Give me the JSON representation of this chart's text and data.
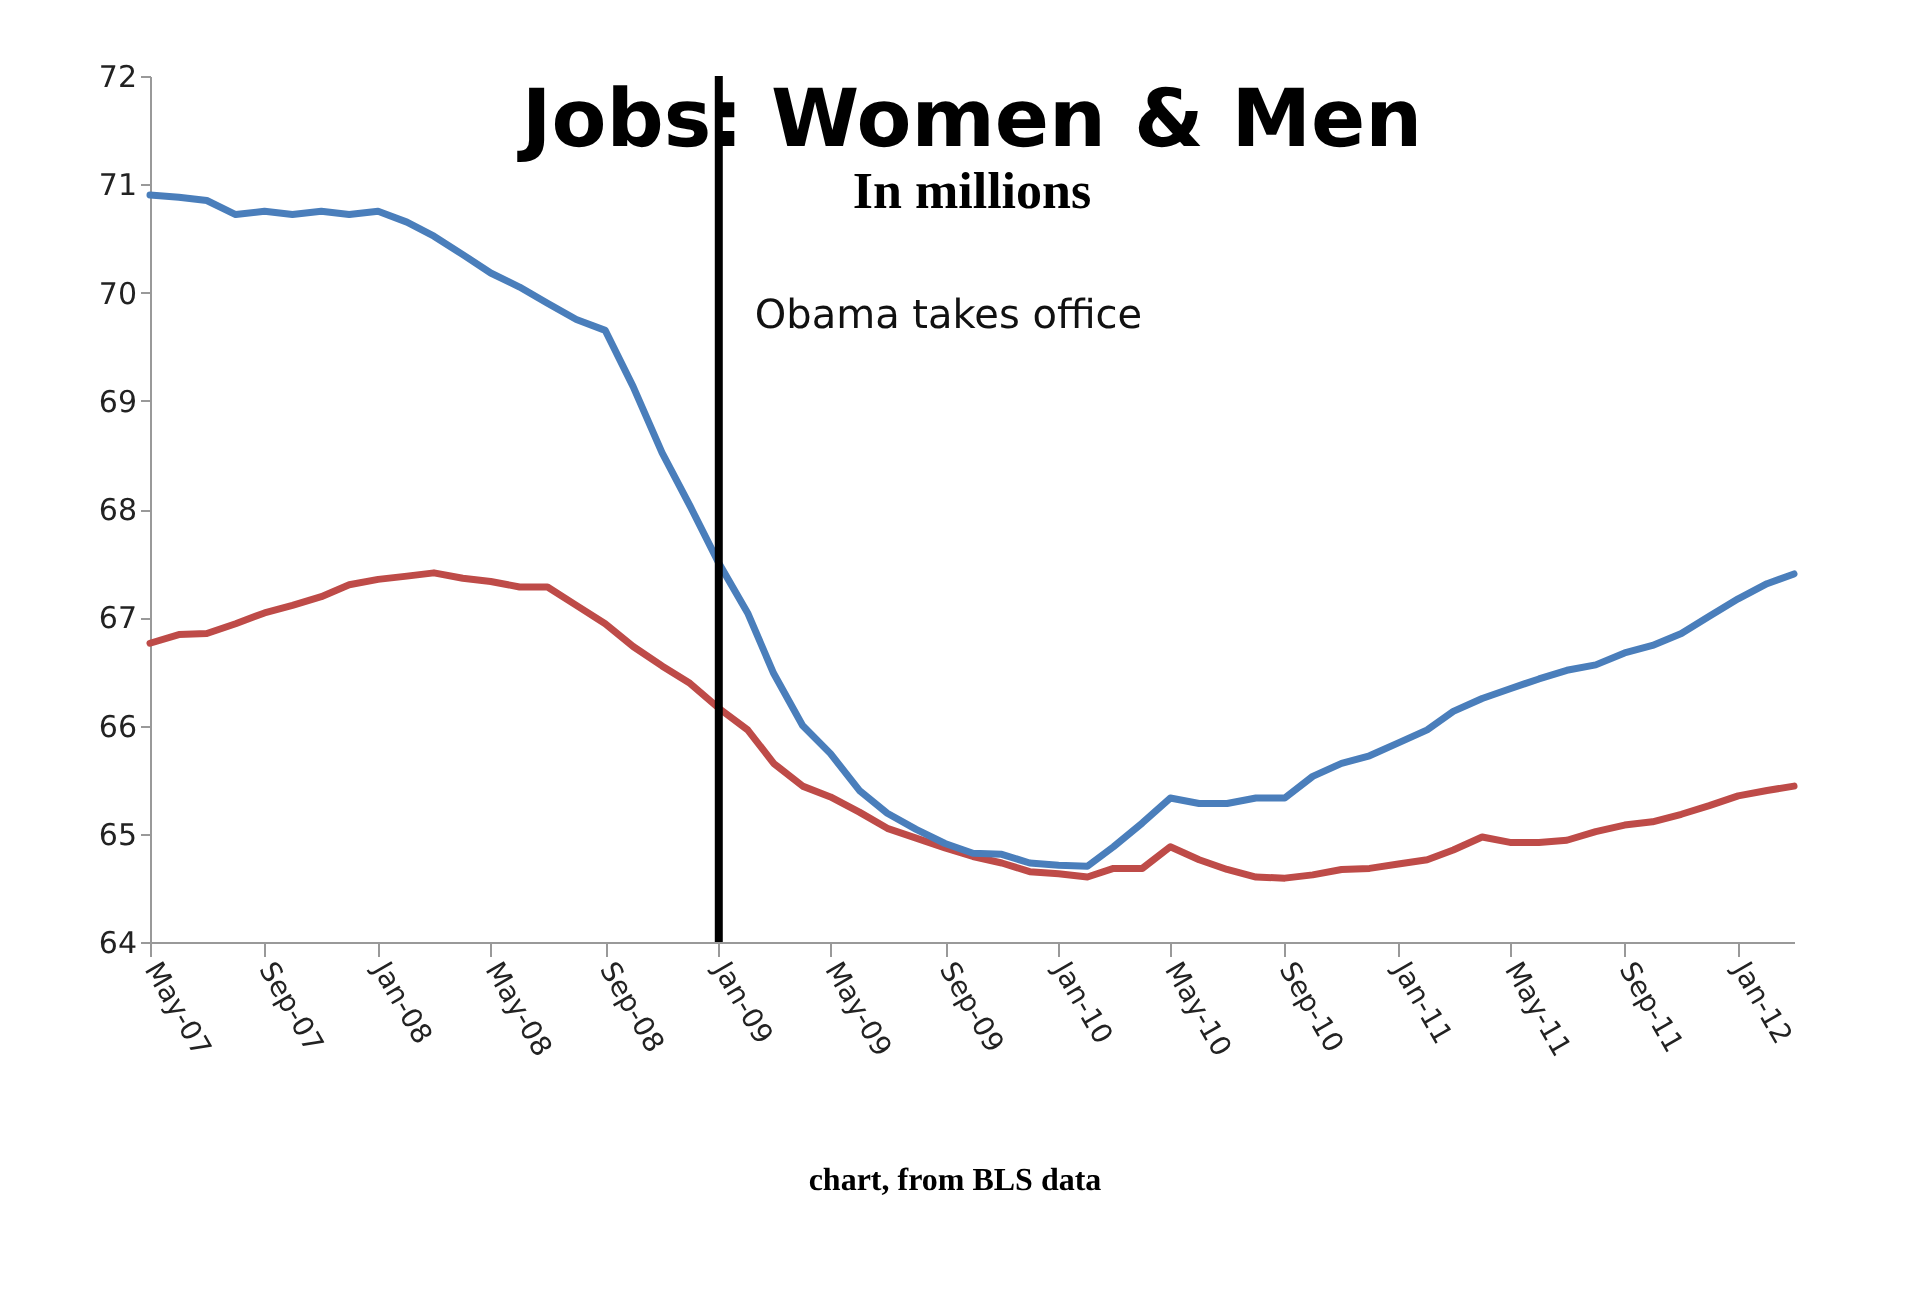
{
  "chart_data": {
    "type": "line",
    "title": "Jobs: Women & Men",
    "subtitle": "In millions",
    "x": [
      "2007-05",
      "2007-06",
      "2007-07",
      "2007-08",
      "2007-09",
      "2007-10",
      "2007-11",
      "2007-12",
      "2008-01",
      "2008-02",
      "2008-03",
      "2008-04",
      "2008-05",
      "2008-06",
      "2008-07",
      "2008-08",
      "2008-09",
      "2008-10",
      "2008-11",
      "2008-12",
      "2009-01",
      "2009-02",
      "2009-03",
      "2009-04",
      "2009-05",
      "2009-06",
      "2009-07",
      "2009-08",
      "2009-09",
      "2009-10",
      "2009-11",
      "2009-12",
      "2010-01",
      "2010-02",
      "2010-03",
      "2010-04",
      "2010-05",
      "2010-06",
      "2010-07",
      "2010-08",
      "2010-09",
      "2010-10",
      "2010-11",
      "2010-12",
      "2011-01",
      "2011-02",
      "2011-03",
      "2011-04",
      "2011-05",
      "2011-06",
      "2011-07",
      "2011-08",
      "2011-09",
      "2011-10",
      "2011-11",
      "2011-12",
      "2012-01",
      "2012-02",
      "2012-03"
    ],
    "series": [
      {
        "color": "#be4b48",
        "values": [
          66.76,
          66.84,
          66.85,
          66.94,
          67.04,
          67.11,
          67.19,
          67.3,
          67.35,
          67.38,
          67.41,
          67.36,
          67.33,
          67.28,
          67.28,
          67.11,
          66.94,
          66.73,
          66.55,
          66.39,
          66.16,
          65.96,
          65.65,
          65.44,
          65.34,
          65.2,
          65.05,
          64.96,
          64.87,
          64.79,
          64.73,
          64.65,
          64.63,
          64.6,
          64.68,
          64.68,
          64.88,
          64.76,
          64.67,
          64.6,
          64.59,
          64.62,
          64.67,
          64.68,
          64.72,
          64.76,
          64.85,
          64.97,
          64.92,
          64.92,
          64.94,
          65.02,
          65.08,
          65.11,
          65.18,
          65.26,
          65.35,
          65.4,
          65.44
        ]
      },
      {
        "color": "#4a7ebb",
        "values": [
          70.9,
          70.88,
          70.85,
          70.72,
          70.75,
          70.72,
          70.75,
          70.72,
          70.75,
          70.65,
          70.52,
          70.35,
          70.18,
          70.05,
          69.9,
          69.75,
          69.65,
          69.13,
          68.52,
          68.03,
          67.5,
          67.04,
          66.48,
          66.0,
          65.74,
          65.4,
          65.19,
          65.04,
          64.91,
          64.82,
          64.81,
          64.73,
          64.71,
          64.7,
          64.88,
          65.1,
          65.33,
          65.28,
          65.28,
          65.33,
          65.33,
          65.53,
          65.65,
          65.72,
          65.84,
          65.96,
          66.13,
          66.25,
          66.34,
          66.43,
          66.51,
          66.56,
          66.67,
          66.74,
          66.85,
          67.01,
          67.17,
          67.31,
          67.4
        ]
      }
    ],
    "xlim": [
      "2007-05",
      "2012-03"
    ],
    "xticks": [
      {
        "value": "2007-05",
        "label": "May-07"
      },
      {
        "value": "2007-09",
        "label": "Sep-07"
      },
      {
        "value": "2008-01",
        "label": "Jan-08"
      },
      {
        "value": "2008-05",
        "label": "May-08"
      },
      {
        "value": "2008-09",
        "label": "Sep-08"
      },
      {
        "value": "2009-01",
        "label": "Jan-09"
      },
      {
        "value": "2009-05",
        "label": "May-09"
      },
      {
        "value": "2009-09",
        "label": "Sep-09"
      },
      {
        "value": "2010-01",
        "label": "Jan-10"
      },
      {
        "value": "2010-05",
        "label": "May-10"
      },
      {
        "value": "2010-09",
        "label": "Sep-10"
      },
      {
        "value": "2011-01",
        "label": "Jan-11"
      },
      {
        "value": "2011-05",
        "label": "May-11"
      },
      {
        "value": "2011-09",
        "label": "Sep-11"
      },
      {
        "value": "2012-01",
        "label": "Jan-12"
      }
    ],
    "ylim": [
      64,
      72
    ],
    "yticks": [
      64,
      65,
      66,
      67,
      68,
      69,
      70,
      71,
      72
    ],
    "ref_lines": [
      {
        "axis": "x",
        "value": "2009-01",
        "label": "Obama takes office",
        "color": "#000000"
      }
    ],
    "annotations": [
      "chart, from BLS data"
    ],
    "grid": false,
    "legend": false,
    "line_style": "solid",
    "marker": "none"
  }
}
